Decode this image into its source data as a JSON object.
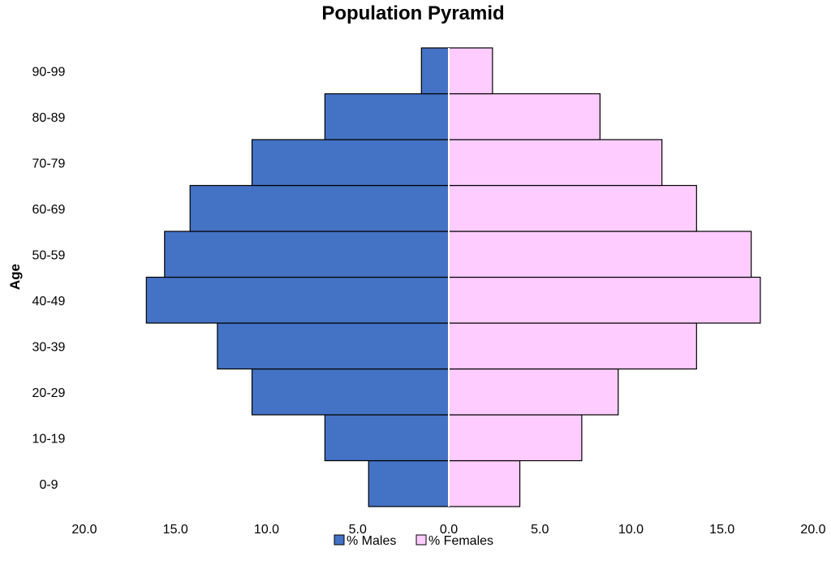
{
  "chart_data": {
    "type": "bar",
    "orientation": "horizontal",
    "layout": "population-pyramid",
    "title": "Population Pyramid",
    "ylabel": "Age",
    "xlabel": "",
    "categories": [
      "0-9",
      "10-19",
      "20-29",
      "30-39",
      "40-49",
      "50-59",
      "60-69",
      "70-79",
      "80-89",
      "90-99"
    ],
    "series": [
      {
        "name": "% Males",
        "side": "left",
        "color": "#4472C4",
        "values": [
          4.4,
          6.8,
          10.8,
          12.7,
          16.6,
          15.6,
          14.2,
          10.8,
          6.8,
          1.5
        ]
      },
      {
        "name": "% Females",
        "side": "right",
        "color": "#FFCCFF",
        "values": [
          3.9,
          7.3,
          9.3,
          13.6,
          17.1,
          16.6,
          13.6,
          11.7,
          8.3,
          2.4
        ]
      }
    ],
    "xlim": [
      -20,
      20
    ],
    "xticks": [
      "20.0",
      "15.0",
      "10.0",
      "5.0",
      "0.0",
      "5.0",
      "10.0",
      "15.0",
      "20.0"
    ],
    "grid": false,
    "legend_position": "bottom"
  }
}
